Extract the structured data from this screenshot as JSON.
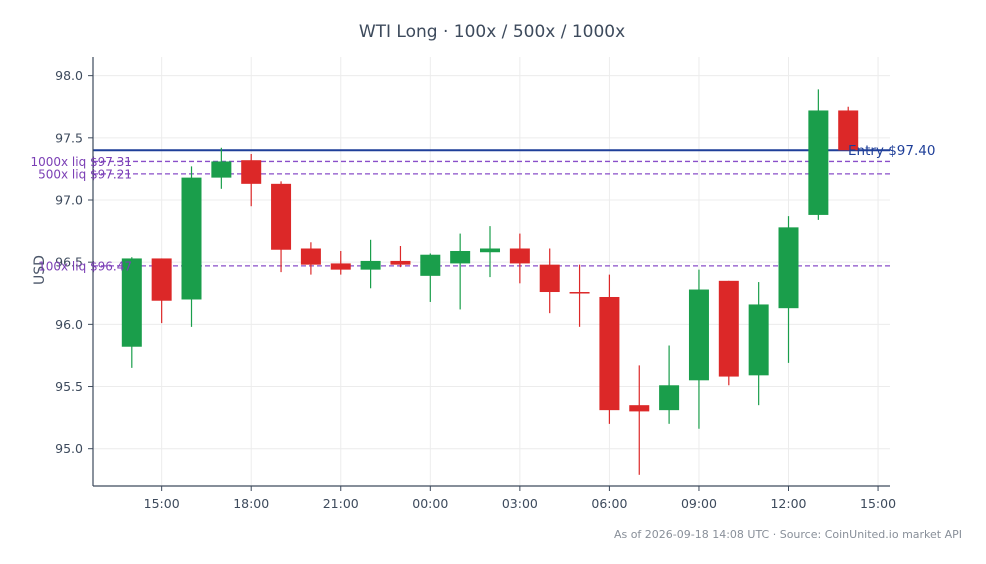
{
  "chart_data": {
    "type": "candlestick",
    "title": "WTI Long · 100x / 500x / 1000x",
    "ylabel": "USD",
    "xlabel": "",
    "ylim": [
      94.7,
      98.15
    ],
    "x_start_hour": 12.7,
    "x_end_hour": 39.4,
    "yticks": [
      {
        "value": 95.0,
        "label": "95.0"
      },
      {
        "value": 95.5,
        "label": "95.5"
      },
      {
        "value": 96.0,
        "label": "96.0"
      },
      {
        "value": 96.5,
        "label": "96.5"
      },
      {
        "value": 97.0,
        "label": "97.0"
      },
      {
        "value": 97.5,
        "label": "97.5"
      },
      {
        "value": 98.0,
        "label": "98.0"
      }
    ],
    "xticks": [
      {
        "hour": 15,
        "label": "15:00"
      },
      {
        "hour": 18,
        "label": "18:00"
      },
      {
        "hour": 21,
        "label": "21:00"
      },
      {
        "hour": 24,
        "label": "00:00"
      },
      {
        "hour": 27,
        "label": "03:00"
      },
      {
        "hour": 30,
        "label": "06:00"
      },
      {
        "hour": 33,
        "label": "09:00"
      },
      {
        "hour": 36,
        "label": "12:00"
      },
      {
        "hour": 39,
        "label": "15:00"
      }
    ],
    "grid": true,
    "colors": {
      "up": "#1a9e4b",
      "down": "#dc2828",
      "entry": "#1f3f99",
      "liq": "#8a4fc9",
      "axis": "#3d4a5c",
      "grid": "#ececec"
    },
    "candles": [
      {
        "hour": 14,
        "open": 95.82,
        "high": 96.54,
        "low": 95.65,
        "close": 96.53
      },
      {
        "hour": 15,
        "open": 96.53,
        "high": 96.53,
        "low": 96.01,
        "close": 96.19
      },
      {
        "hour": 16,
        "open": 96.2,
        "high": 97.27,
        "low": 95.98,
        "close": 97.18
      },
      {
        "hour": 17,
        "open": 97.18,
        "high": 97.42,
        "low": 97.09,
        "close": 97.31
      },
      {
        "hour": 18,
        "open": 97.32,
        "high": 97.37,
        "low": 96.95,
        "close": 97.13
      },
      {
        "hour": 19,
        "open": 97.13,
        "high": 97.15,
        "low": 96.42,
        "close": 96.6
      },
      {
        "hour": 20,
        "open": 96.61,
        "high": 96.66,
        "low": 96.4,
        "close": 96.48
      },
      {
        "hour": 21,
        "open": 96.49,
        "high": 96.59,
        "low": 96.4,
        "close": 96.44
      },
      {
        "hour": 22,
        "open": 96.44,
        "high": 96.68,
        "low": 96.29,
        "close": 96.51
      },
      {
        "hour": 23,
        "open": 96.51,
        "high": 96.63,
        "low": 96.46,
        "close": 96.48
      },
      {
        "hour": 24,
        "open": 96.39,
        "high": 96.57,
        "low": 96.18,
        "close": 96.56
      },
      {
        "hour": 25,
        "open": 96.49,
        "high": 96.73,
        "low": 96.12,
        "close": 96.59
      },
      {
        "hour": 26,
        "open": 96.58,
        "high": 96.79,
        "low": 96.38,
        "close": 96.61
      },
      {
        "hour": 27,
        "open": 96.61,
        "high": 96.73,
        "low": 96.33,
        "close": 96.49
      },
      {
        "hour": 28,
        "open": 96.48,
        "high": 96.61,
        "low": 96.09,
        "close": 96.26
      },
      {
        "hour": 29,
        "open": 96.26,
        "high": 96.48,
        "low": 95.98,
        "close": 96.25
      },
      {
        "hour": 30,
        "open": 96.22,
        "high": 96.4,
        "low": 95.2,
        "close": 95.31
      },
      {
        "hour": 31,
        "open": 95.35,
        "high": 95.67,
        "low": 94.79,
        "close": 95.3
      },
      {
        "hour": 32,
        "open": 95.31,
        "high": 95.83,
        "low": 95.2,
        "close": 95.51
      },
      {
        "hour": 33,
        "open": 95.55,
        "high": 96.44,
        "low": 95.16,
        "close": 96.28
      },
      {
        "hour": 34,
        "open": 96.35,
        "high": 96.35,
        "low": 95.51,
        "close": 95.58
      },
      {
        "hour": 35,
        "open": 95.59,
        "high": 96.34,
        "low": 95.35,
        "close": 96.16
      },
      {
        "hour": 36,
        "open": 96.13,
        "high": 96.87,
        "low": 95.69,
        "close": 96.78
      },
      {
        "hour": 37,
        "open": 96.88,
        "high": 97.89,
        "low": 96.84,
        "close": 97.72
      },
      {
        "hour": 38,
        "open": 97.72,
        "high": 97.75,
        "low": 97.4,
        "close": 97.4
      }
    ],
    "entry": {
      "value": 97.4,
      "label": "Entry $97.40"
    },
    "liquidations": [
      {
        "value": 97.31,
        "label": "1000x liq $97.31"
      },
      {
        "value": 97.21,
        "label": "500x liq $97.21"
      },
      {
        "value": 96.47,
        "label": "100x liq $96.47"
      }
    ]
  },
  "footer": "As of 2026-09-18 14:08 UTC · Source: CoinUnited.io market API"
}
